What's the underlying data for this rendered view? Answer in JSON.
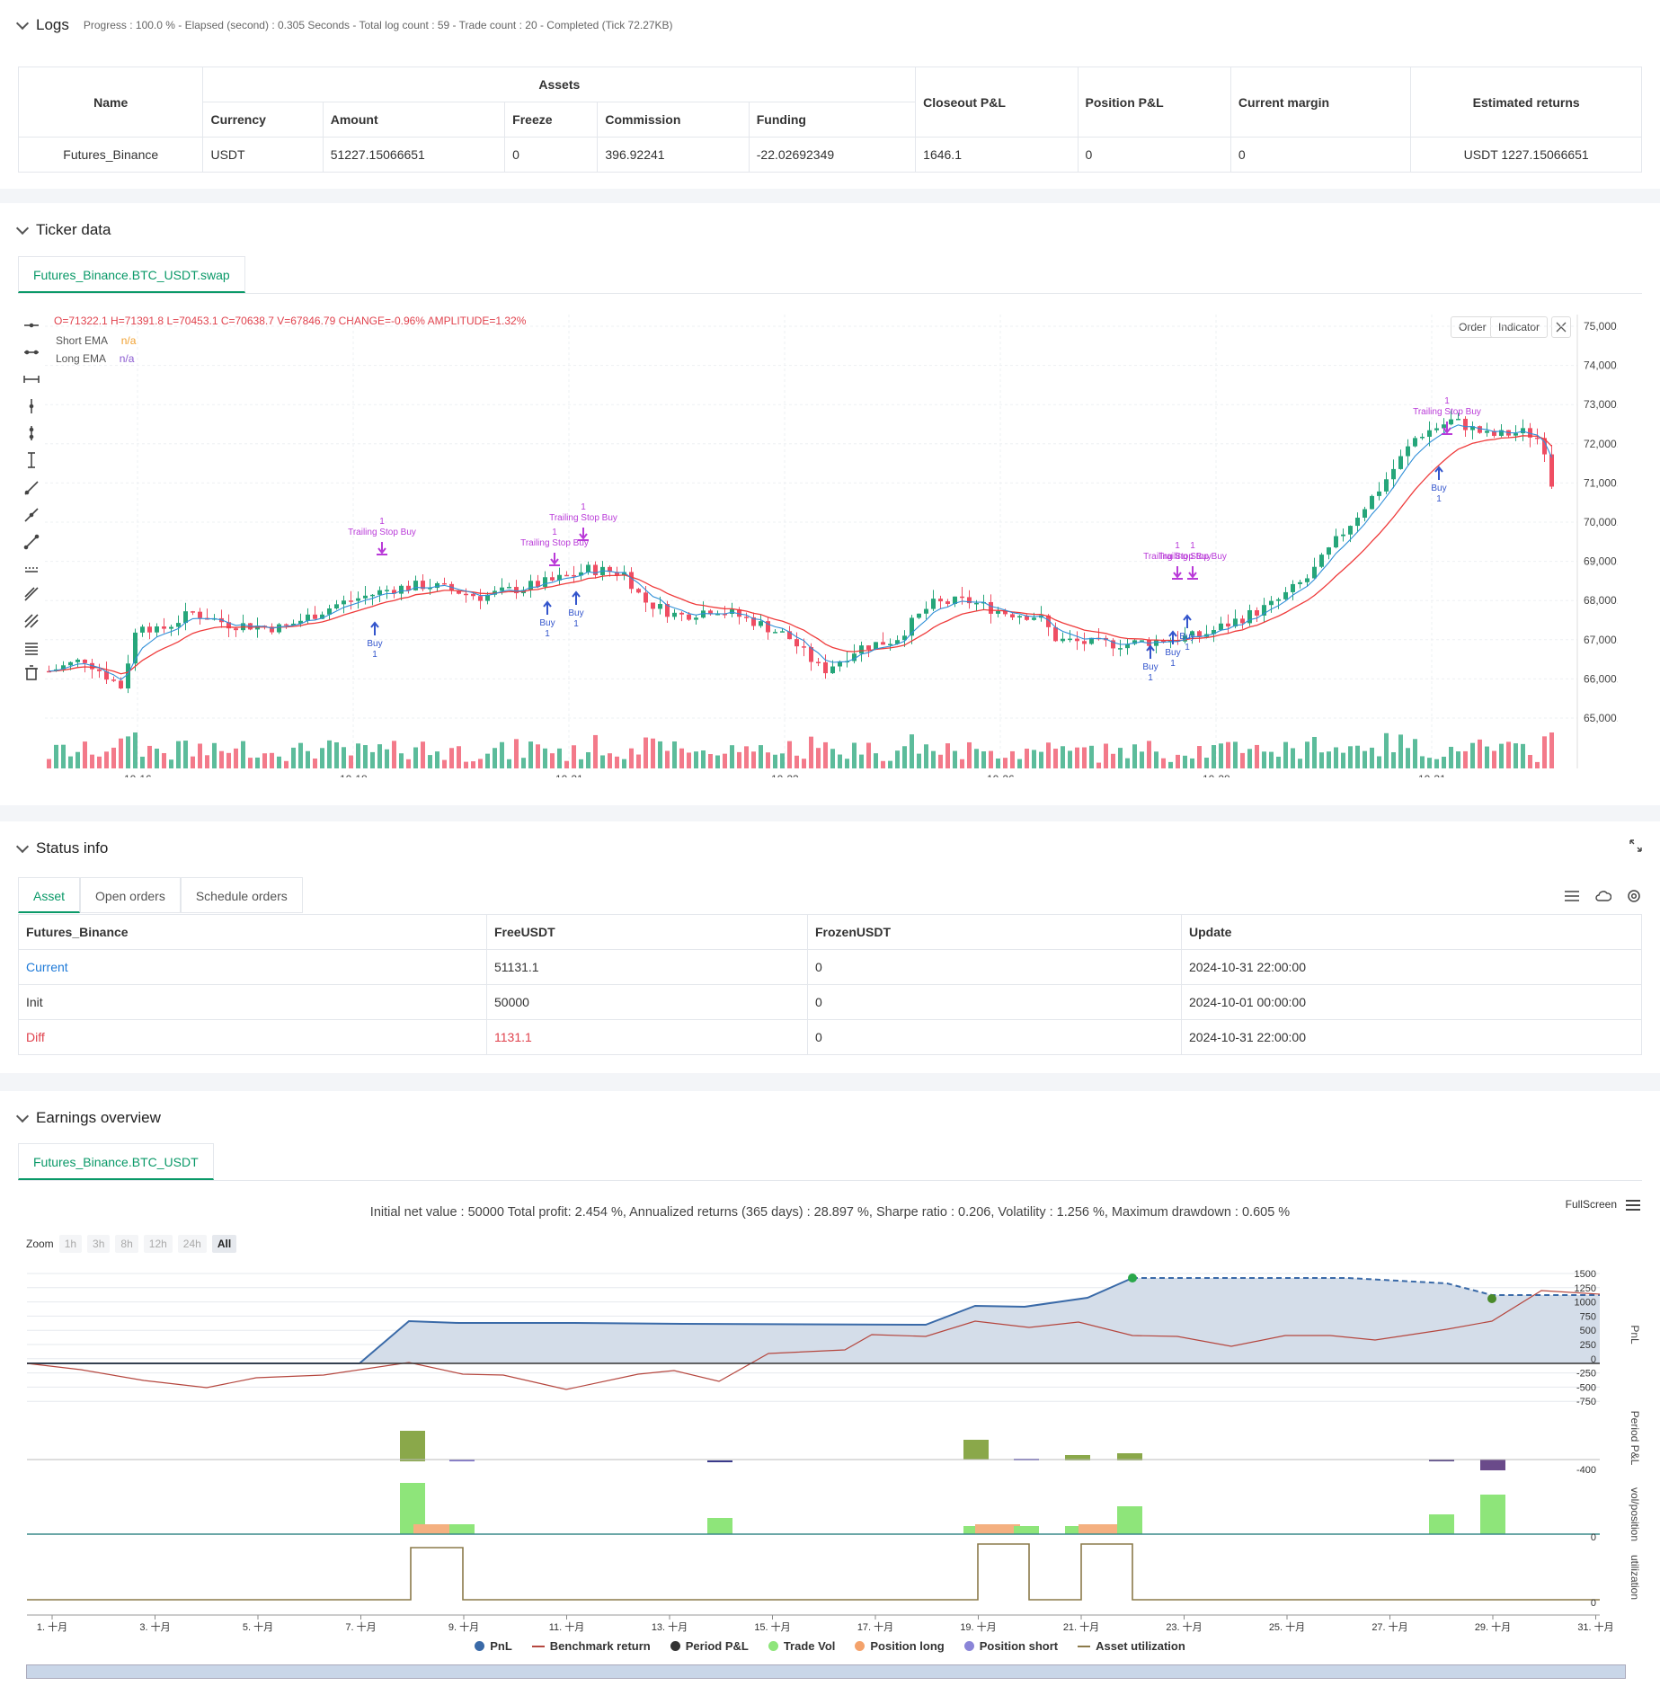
{
  "logs": {
    "title": "Logs",
    "meta": "Progress : 100.0 % - Elapsed (second) : 0.305  Seconds - Total log count : 59 - Trade count : 20 - Completed (Tick 72.27KB)",
    "headers": {
      "name": "Name",
      "assets": "Assets",
      "currency": "Currency",
      "amount": "Amount",
      "freeze": "Freeze",
      "commission": "Commission",
      "funding": "Funding",
      "closeout": "Closeout P&L",
      "position": "Position P&L",
      "margin": "Current margin",
      "returns": "Estimated returns"
    },
    "row": {
      "name": "Futures_Binance",
      "currency": "USDT",
      "amount": "51227.15066651",
      "freeze": "0",
      "commission": "396.92241",
      "funding": "-22.02692349",
      "closeout": "1646.1",
      "position": "0",
      "margin": "0",
      "returns": "USDT 1227.15066651"
    }
  },
  "ticker": {
    "title": "Ticker data",
    "tab": "Futures_Binance.BTC_USDT.swap",
    "ohlc": "O=71322.1  H=71391.8  L=70453.1  C=70638.7  V=67846.79  CHANGE=-0.96%  AMPLITUDE=1.32%",
    "short_ema_label": "Short EMA",
    "short_ema_val": "n/a",
    "long_ema_label": "Long EMA",
    "long_ema_val": "n/a",
    "order_btn": "Order",
    "indicator_btn": "Indicator",
    "y_ticks": [
      "75,000.00",
      "74,000.00",
      "73,000.00",
      "72,000.00",
      "71,000.00",
      "70,000.00",
      "69,000.00",
      "68,000.00",
      "67,000.00",
      "66,000.00",
      "65,000.00"
    ],
    "x_ticks": [
      "10-16",
      "10-18",
      "10-21",
      "10-23",
      "10-26",
      "10-28",
      "10-31"
    ],
    "annotations": {
      "trailing": "Trailing Stop Buy",
      "buy": "Buy",
      "qty": "1"
    }
  },
  "status": {
    "title": "Status info",
    "tabs": [
      "Asset",
      "Open orders",
      "Schedule orders"
    ],
    "headers": [
      "Futures_Binance",
      "FreeUSDT",
      "FrozenUSDT",
      "Update"
    ],
    "rows": [
      [
        "Current",
        "51131.1",
        "0",
        "2024-10-31 22:00:00"
      ],
      [
        "Init",
        "50000",
        "0",
        "2024-10-01 00:00:00"
      ],
      [
        "Diff",
        "1131.1",
        "0",
        "2024-10-31 22:00:00"
      ]
    ]
  },
  "earnings": {
    "title": "Earnings overview",
    "tab": "Futures_Binance.BTC_USDT",
    "summary": "Initial net value : 50000  Total profit: 2.454 %, Annualized returns (365 days) : 28.897 %, Sharpe ratio : 0.206, Volatility : 1.256 %, Maximum drawdown : 0.605 %",
    "fullscreen": "FullScreen",
    "zoom_label": "Zoom",
    "zoom_opts": [
      "1h",
      "3h",
      "8h",
      "12h",
      "24h",
      "All"
    ],
    "pnl_ticks": [
      "1500",
      "1250",
      "1000",
      "750",
      "500",
      "250",
      "0",
      "-250",
      "-500",
      "-750"
    ],
    "period_tick": "-400",
    "vol_tick": "0",
    "util_tick": "0",
    "axis_titles": [
      "PnL",
      "Period P&L",
      "vol/position",
      "utilization"
    ],
    "x_ticks": [
      "1. 十月",
      "3. 十月",
      "5. 十月",
      "7. 十月",
      "9. 十月",
      "11. 十月",
      "13. 十月",
      "15. 十月",
      "17. 十月",
      "19. 十月",
      "21. 十月",
      "23. 十月",
      "25. 十月",
      "27. 十月",
      "29. 十月",
      "31. 十月"
    ],
    "legend": [
      "PnL",
      "Benchmark return",
      "Period P&L",
      "Trade Vol",
      "Position long",
      "Position short",
      "Asset utilization"
    ],
    "colors": {
      "pnl": "#3a6aa8",
      "benchmark": "#b5473f",
      "period": "#333333",
      "trade_vol": "#8ee57a",
      "pos_long": "#f4a26b",
      "pos_short": "#8a85d8",
      "util": "#8b7a4a"
    }
  },
  "colors": {
    "up": "#26a67a",
    "down": "#ef4e63",
    "accent": "#0a9968",
    "annotation": "#b93ad8",
    "buy": "#3355cc"
  }
}
